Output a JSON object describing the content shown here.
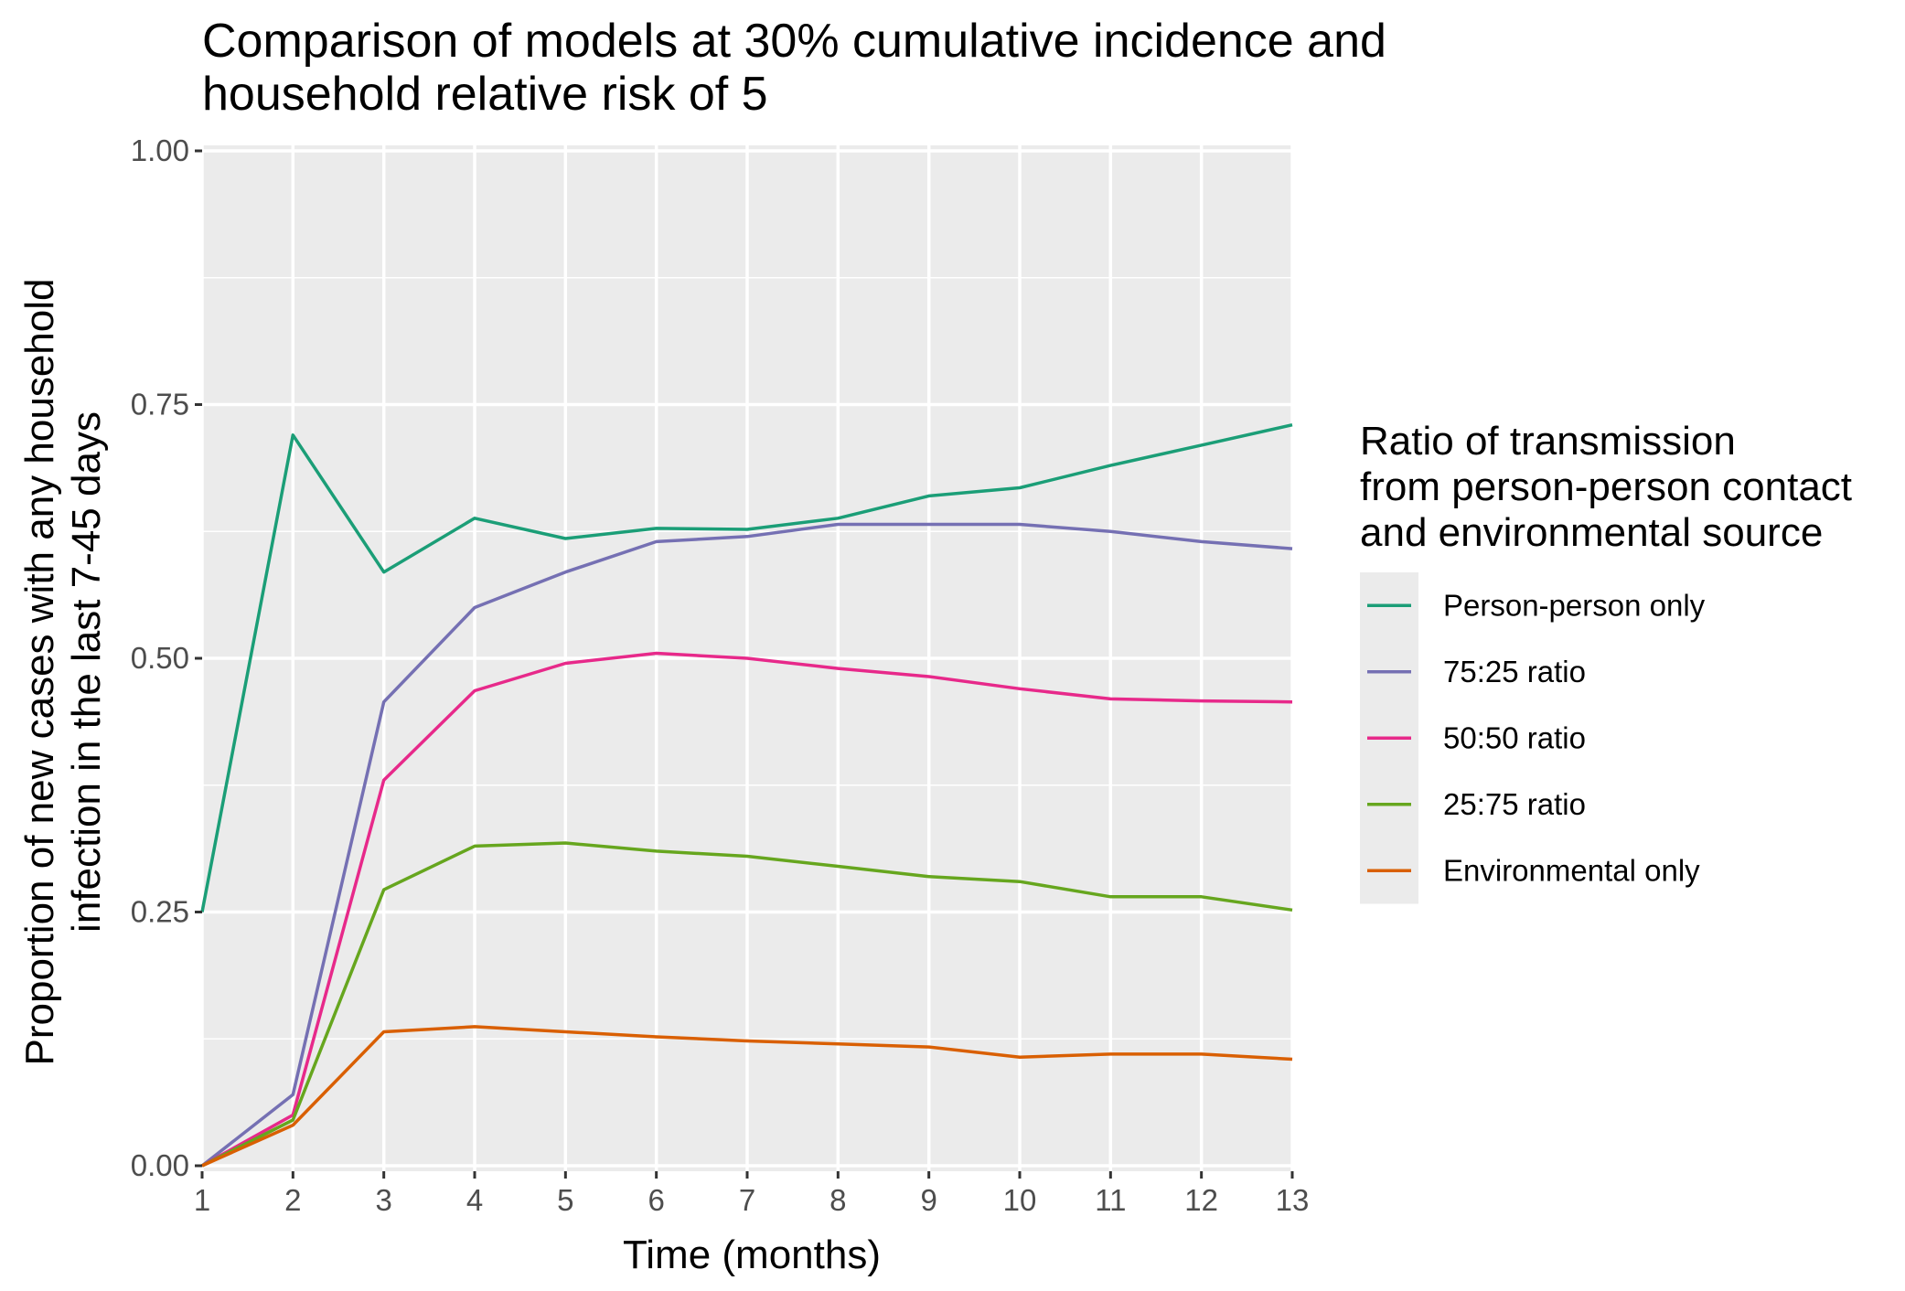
{
  "chart_data": {
    "type": "line",
    "title_lines": [
      "Comparison of models at 30% cumulative incidence and",
      "household relative risk of 5"
    ],
    "xlabel": "Time (months)",
    "ylabel_lines": [
      "Proportion of new cases with any household",
      "infection in the last 7-45 days"
    ],
    "xlim": [
      1,
      13
    ],
    "ylim": [
      0,
      1
    ],
    "x": [
      1,
      2,
      3,
      4,
      5,
      6,
      7,
      8,
      9,
      10,
      11,
      12,
      13
    ],
    "x_ticks": [
      "1",
      "2",
      "3",
      "4",
      "5",
      "6",
      "7",
      "8",
      "9",
      "10",
      "11",
      "12",
      "13"
    ],
    "y_ticks": [
      {
        "value": 0,
        "label": "0.00"
      },
      {
        "value": 0.25,
        "label": "0.25"
      },
      {
        "value": 0.5,
        "label": "0.50"
      },
      {
        "value": 0.75,
        "label": "0.75"
      },
      {
        "value": 1,
        "label": "1.00"
      }
    ],
    "grid": true,
    "legend": {
      "title_lines": [
        "Ratio of transmission",
        "from person-person contact",
        "and environmental source"
      ],
      "placement": "right"
    },
    "series": [
      {
        "name": "Person-person only",
        "color": "#1b9e77",
        "values": [
          0.25,
          0.72,
          0.585,
          0.638,
          0.618,
          0.628,
          0.627,
          0.638,
          0.66,
          0.668,
          0.69,
          0.71,
          0.73
        ]
      },
      {
        "name": "75:25 ratio",
        "color": "#7570b3",
        "values": [
          0.0,
          0.07,
          0.457,
          0.55,
          0.585,
          0.615,
          0.62,
          0.632,
          0.632,
          0.632,
          0.625,
          0.615,
          0.608
        ]
      },
      {
        "name": "50:50 ratio",
        "color": "#e7298a",
        "values": [
          0.0,
          0.05,
          0.38,
          0.468,
          0.495,
          0.505,
          0.5,
          0.49,
          0.482,
          0.47,
          0.46,
          0.458,
          0.457
        ]
      },
      {
        "name": "25:75 ratio",
        "color": "#66a61e",
        "values": [
          0.0,
          0.045,
          0.272,
          0.315,
          0.318,
          0.31,
          0.305,
          0.295,
          0.285,
          0.28,
          0.265,
          0.265,
          0.252
        ]
      },
      {
        "name": "Environmental only",
        "color": "#d95f02",
        "values": [
          0.0,
          0.04,
          0.132,
          0.137,
          0.132,
          0.127,
          0.123,
          0.12,
          0.117,
          0.107,
          0.11,
          0.11,
          0.105
        ]
      }
    ]
  }
}
